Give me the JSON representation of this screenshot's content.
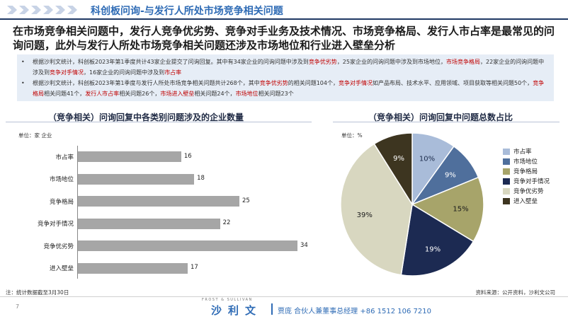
{
  "header": {
    "title": "科创板问询-与发行人所处市场竞争相关问题"
  },
  "headline": "在市场竞争相关问题中，发行人竞争优劣势、竞争对手业务及技术情况、市场竞争格局、发行人市占率是最常见的问询问题，此外与发行人所处市场竞争相关问题还涉及市场地位和行业进入壁垒分析",
  "bullets": [
    [
      {
        "t": "根据沙利文统计，科创板2023年第1季度共计43家企业提交了问询回复。其中有34家企业的问询问题中涉及到",
        "hl": false
      },
      {
        "t": "竞争优劣势",
        "hl": true
      },
      {
        "t": "，25家企业的问询问题中涉及到市场地位，",
        "hl": false
      },
      {
        "t": "市场竞争格局",
        "hl": true
      },
      {
        "t": "，22家企业的问询问题中涉及到",
        "hl": false
      },
      {
        "t": "竞争对手情况",
        "hl": true
      },
      {
        "t": "，16家企业的问询问题中涉及到",
        "hl": false
      },
      {
        "t": "市占率",
        "hl": true
      }
    ],
    [
      {
        "t": "根据沙利文统计，科创板2023年第1季度与发行人所处市场竞争相关问题共计268个，其中",
        "hl": false
      },
      {
        "t": "竞争优劣势",
        "hl": true
      },
      {
        "t": "的相关问题104个，",
        "hl": false
      },
      {
        "t": "竞争对手情况",
        "hl": true
      },
      {
        "t": "如产品布局、技术水平、应用领域、项目获取等相关问题50个，",
        "hl": false
      },
      {
        "t": "竞争格局",
        "hl": true
      },
      {
        "t": "相关问题41个，",
        "hl": false
      },
      {
        "t": "发行人市占率",
        "hl": true
      },
      {
        "t": "相关问题26个，",
        "hl": false
      },
      {
        "t": "市场进入壁垒",
        "hl": true
      },
      {
        "t": "相关问题24个，",
        "hl": false
      },
      {
        "t": "市场地位",
        "hl": true
      },
      {
        "t": "相关问题23个",
        "hl": false
      }
    ]
  ],
  "bullet_symbol": "•",
  "left_chart": {
    "section_title": "（竞争相关）问询回复中各类别问题涉及的企业数量",
    "unit": "单位：家 企业"
  },
  "right_chart": {
    "section_title": "（竞争相关）问询回复中问题总数占比",
    "unit": "单位：%"
  },
  "chart_data": [
    {
      "type": "bar",
      "orientation": "horizontal",
      "title": "（竞争相关）问询回复中各类别问题涉及的企业数量",
      "unit": "单位：家 企业",
      "categories": [
        "市占率",
        "市场地位",
        "竞争格局",
        "竞争对手情况",
        "竞争优劣势",
        "进入壁垒"
      ],
      "values": [
        16,
        18,
        25,
        22,
        34,
        17
      ],
      "xlim": [
        0,
        40
      ],
      "grid": false,
      "bar_color": "#a6a6a6"
    },
    {
      "type": "pie",
      "title": "（竞争相关）问询回复中问题总数占比",
      "unit": "单位：%",
      "labels": [
        "市占率",
        "市场地位",
        "竞争格局",
        "竞争对手情况",
        "竞争优劣势",
        "进入壁垒"
      ],
      "values": [
        10,
        9,
        15,
        19,
        39,
        9
      ],
      "value_labels": [
        "10%",
        "9%",
        "15%",
        "19%",
        "39%",
        "9%"
      ],
      "colors": [
        "#a9bcd9",
        "#4f6f9c",
        "#a7a46a",
        "#1c2a52",
        "#d8d7c0",
        "#3d3520"
      ],
      "label_colors": [
        "#1a2a4a",
        "#ffffff",
        "#1a1a1a",
        "#ffffff",
        "#1a1a1a",
        "#ffffff"
      ],
      "legend_position": "right"
    }
  ],
  "footer": {
    "note": "注：统计数据截至3月30日",
    "source": "资料来源：公开资料，沙利文公司",
    "page": "7",
    "logo_small": "FROST & SULLIVAN",
    "logo_main": "沙利文",
    "contact": "贾庞  合伙人兼董事总经理  +86 1512 106 7210"
  }
}
